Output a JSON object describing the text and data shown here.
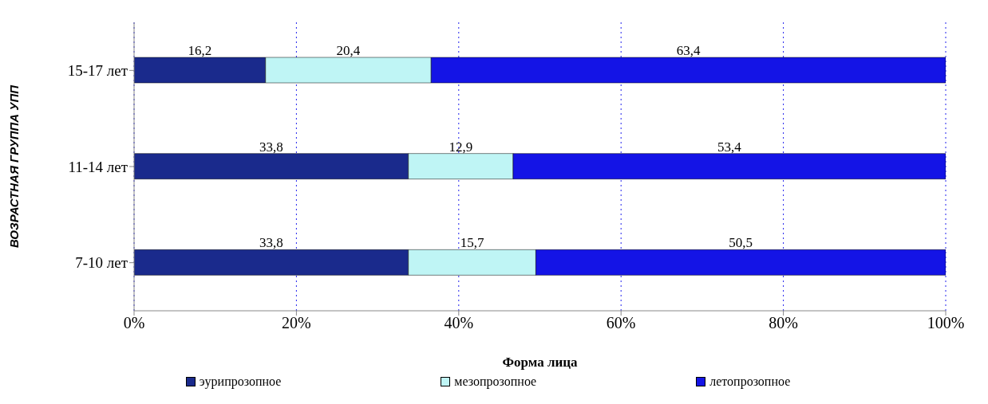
{
  "chart_data": {
    "type": "bar",
    "orientation": "horizontal",
    "stacked": true,
    "categories": [
      "15-17 лет",
      "11-14 лет",
      "7-10 лет"
    ],
    "series": [
      {
        "name": "эурипрозопное",
        "color": "#1a2a8c",
        "values": [
          16.2,
          33.8,
          33.8
        ],
        "value_labels": [
          "16,2",
          "33,8",
          "33,8"
        ]
      },
      {
        "name": "мезопрозопное",
        "color": "#bff5f5",
        "values": [
          20.4,
          12.9,
          15.7
        ],
        "value_labels": [
          "20,4",
          "12,9",
          "15,7"
        ]
      },
      {
        "name": "летопрозопное",
        "color": "#1414e6",
        "values": [
          63.4,
          53.4,
          50.5
        ],
        "value_labels": [
          "63,4",
          "53,4",
          "50,5"
        ]
      }
    ],
    "xlim": [
      0,
      100
    ],
    "xticks": [
      {
        "value": 0,
        "label": "0%"
      },
      {
        "value": 20,
        "label": "20%"
      },
      {
        "value": 40,
        "label": "40%"
      },
      {
        "value": 60,
        "label": "60%"
      },
      {
        "value": 80,
        "label": "80%"
      },
      {
        "value": 100,
        "label": "100%"
      }
    ],
    "xlabel": "Форма лица",
    "ylabel": "ВОЗРАСТНАЯ ГРУППА УПП",
    "grid": "x",
    "legend": "bottom"
  }
}
